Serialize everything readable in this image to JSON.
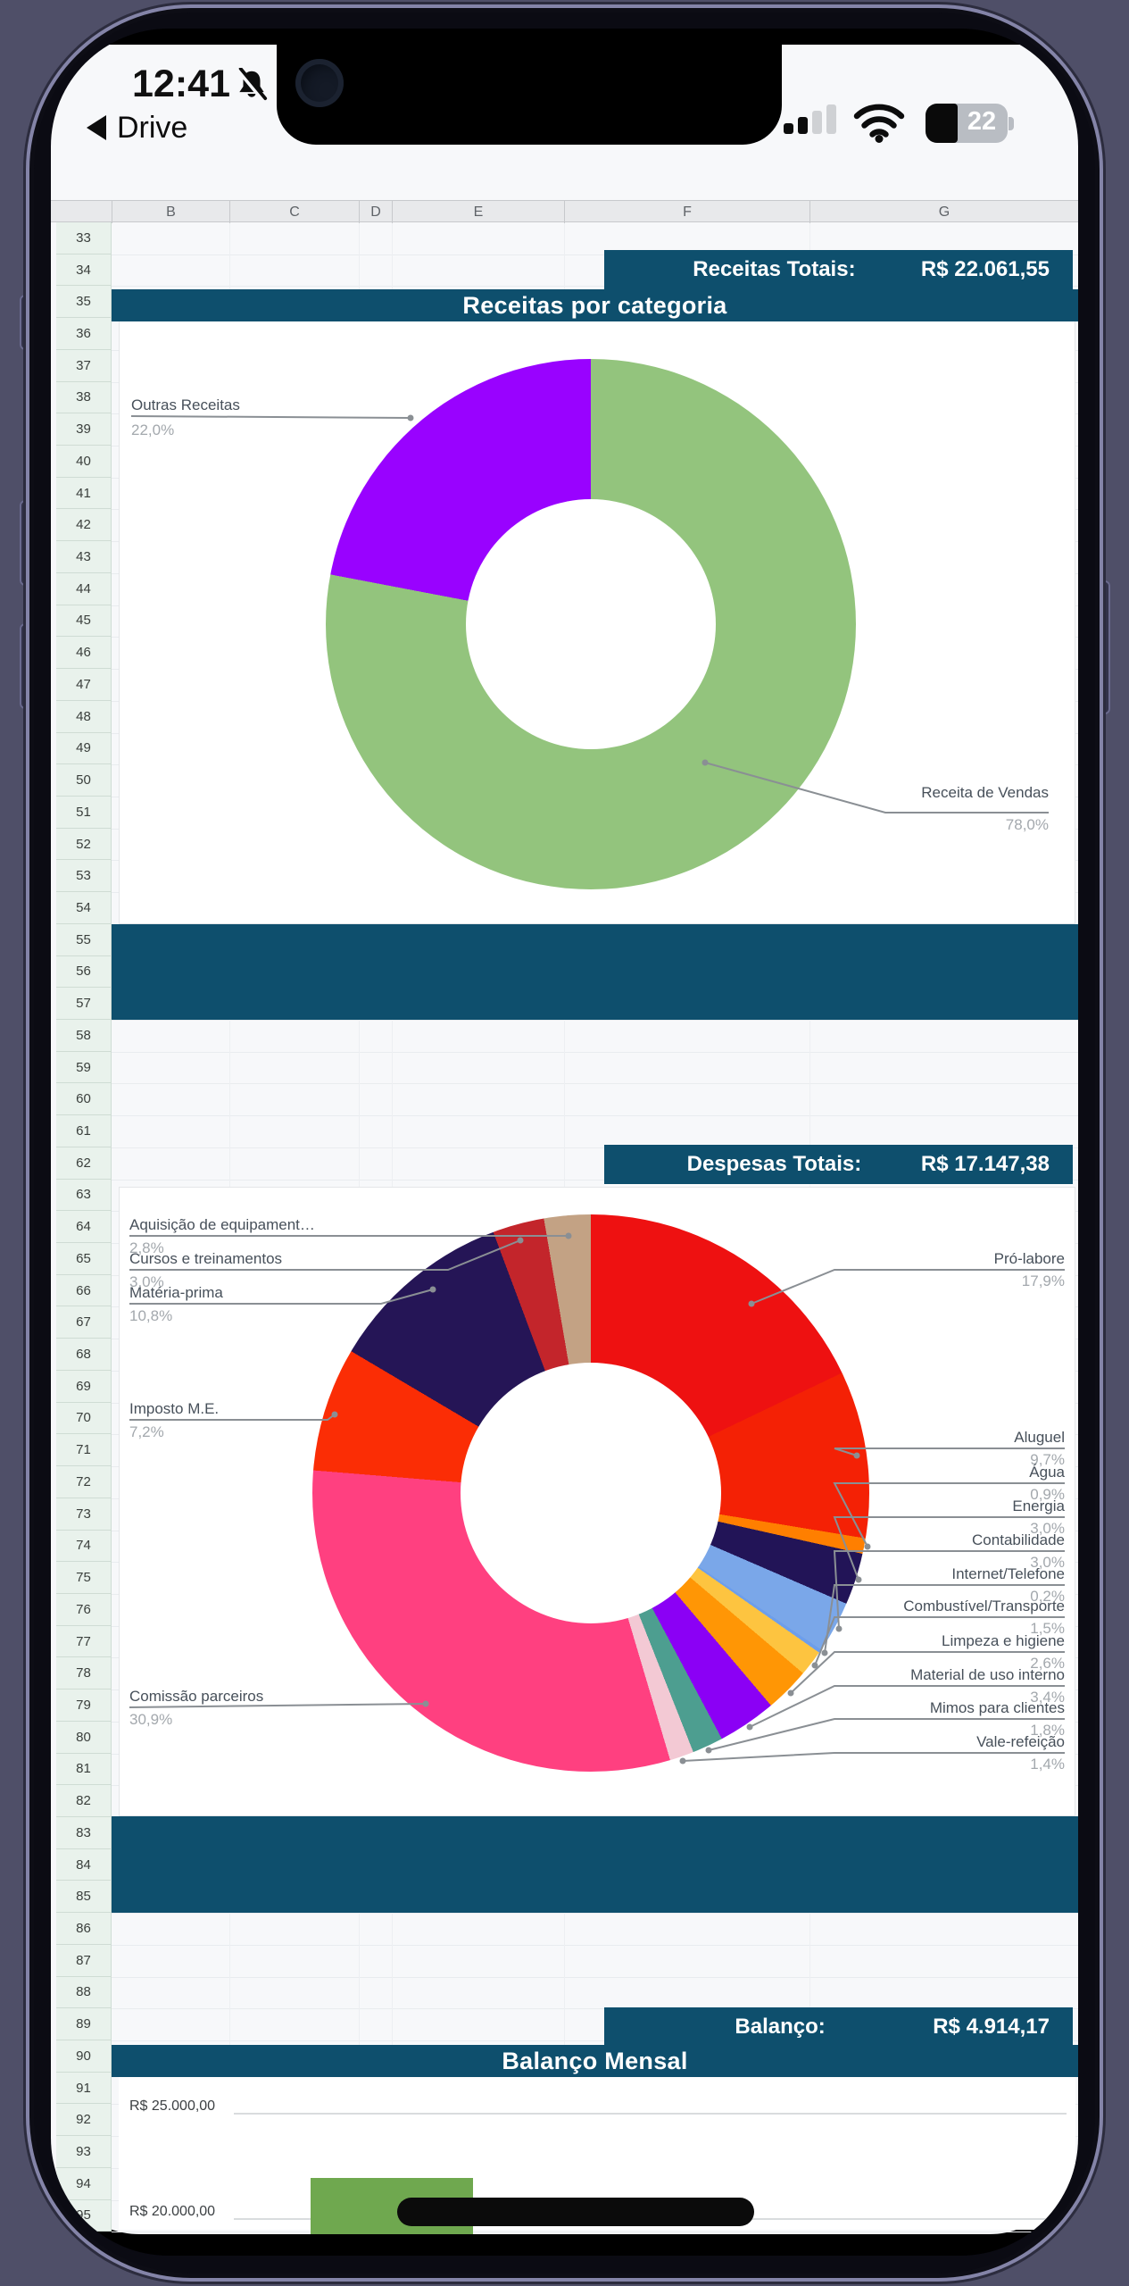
{
  "status_bar": {
    "time": "12:41",
    "back_label": "Drive",
    "battery_level": "22",
    "icons": [
      "bell-slash-icon",
      "cellular-signal-icon",
      "wifi-icon",
      "battery-icon"
    ]
  },
  "sheet": {
    "columns": [
      "B",
      "C",
      "D",
      "E",
      "F",
      "G"
    ],
    "row_start": 33,
    "row_end": 94,
    "summary_bars": [
      {
        "label": "Receitas Totais:",
        "value": "R$ 22.061,55"
      },
      {
        "label": "Despesas Totais:",
        "value": "R$ 17.147,38"
      },
      {
        "label": "Balanço:",
        "value": "R$ 4.914,17"
      }
    ],
    "titles": {
      "receitas": "Receitas por categoria",
      "balanco": "Balanço Mensal"
    }
  },
  "colors": {
    "header_teal": "#0e4f6d",
    "sheet_bg": "#f7f8fa",
    "row_header_bg": "#e9f2ec",
    "accent_green": "#6fa84f"
  },
  "chart_data": [
    {
      "type": "pie",
      "donut": true,
      "title": "Receitas por categoria",
      "total_label": "Receitas Totais:",
      "total_value": "R$ 22.061,55",
      "slices": [
        {
          "label": "Receita de Vendas",
          "value": 78.0,
          "pct_label": "78,0%",
          "color": "#93c47d"
        },
        {
          "label": "Outras Receitas",
          "value": 22.0,
          "pct_label": "22,0%",
          "color": "#9902ff"
        }
      ]
    },
    {
      "type": "pie",
      "donut": true,
      "total_label": "Despesas Totais:",
      "total_value": "R$ 17.147,38",
      "slices": [
        {
          "label": "Pró-labore",
          "value": 17.9,
          "pct_label": "17,9%",
          "color": "#ee1111"
        },
        {
          "label": "Aluguel",
          "value": 9.7,
          "pct_label": "9,7%",
          "color": "#f42105"
        },
        {
          "label": "Água",
          "value": 0.9,
          "pct_label": "0,9%",
          "color": "#ff7f00"
        },
        {
          "label": "Energia",
          "value": 3.0,
          "pct_label": "3,0%",
          "color": "#221457"
        },
        {
          "label": "Contabilidade",
          "value": 3.0,
          "pct_label": "3,0%",
          "color": "#7aa7e9"
        },
        {
          "label": "Internet/Telefone",
          "value": 0.2,
          "pct_label": "0,2%",
          "color": "#6d9eeb"
        },
        {
          "label": "Combustível/Transporte",
          "value": 1.5,
          "pct_label": "1,5%",
          "color": "#fdc440"
        },
        {
          "label": "Limpeza e higiene",
          "value": 2.6,
          "pct_label": "2,6%",
          "color": "#ff9605"
        },
        {
          "label": "Material de uso interno",
          "value": 3.4,
          "pct_label": "3,4%",
          "color": "#8b00f5"
        },
        {
          "label": "Mimos para clientes",
          "value": 1.8,
          "pct_label": "1,8%",
          "color": "#4d9e90"
        },
        {
          "label": "Vale-refeição",
          "value": 1.4,
          "pct_label": "1,4%",
          "color": "#f3c9d4"
        },
        {
          "label": "Comissão parceiros",
          "value": 30.9,
          "pct_label": "30,9%",
          "color": "#ff4080"
        },
        {
          "label": "Imposto M.E.",
          "value": 7.2,
          "pct_label": "7,2%",
          "color": "#fb2d05"
        },
        {
          "label": "Matéria-prima",
          "value": 10.8,
          "pct_label": "10,8%",
          "color": "#251556"
        },
        {
          "label": "Cursos e treinamentos",
          "value": 3.0,
          "pct_label": "3,0%",
          "color": "#c3252b"
        },
        {
          "label": "Aquisição de equipament…",
          "value": 2.8,
          "pct_label": "2,8%",
          "color": "#c3a284"
        }
      ]
    },
    {
      "type": "bar",
      "title": "Balanço Mensal",
      "total_label": "Balanço:",
      "total_value": "R$ 4.914,17",
      "y_tick_labels": [
        "R$ 25.000,00",
        "R$ 20.000,00"
      ],
      "y_tick_values": [
        25000,
        20000
      ],
      "visible_bars": [
        {
          "color": "#6fa84f",
          "value_estimate": 22000
        }
      ]
    }
  ]
}
